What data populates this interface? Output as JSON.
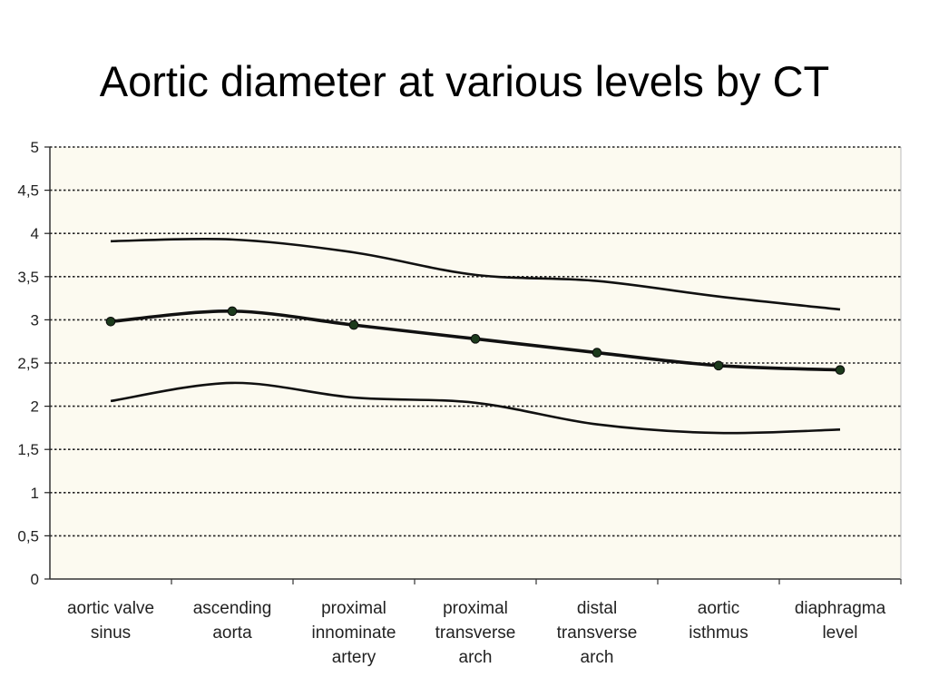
{
  "title": "Aortic diameter at various levels by CT",
  "colors": {
    "plot_background": "#fcfaf0",
    "grid": "#222222",
    "line": "#111111",
    "marker": "#1c3a1c"
  },
  "chart_data": {
    "type": "line",
    "title": "",
    "xlabel": "",
    "ylabel": "",
    "ylim": [
      0,
      5
    ],
    "yticks": [
      0,
      0.5,
      1,
      1.5,
      2,
      2.5,
      3,
      3.5,
      4,
      4.5,
      5
    ],
    "ytick_labels": [
      "0",
      "0,5",
      "1",
      "1,5",
      "2",
      "2,5",
      "3",
      "3,5",
      "4",
      "4,5",
      "5"
    ],
    "grid": "horizontal dotted",
    "legend": "none",
    "categories": [
      [
        "aortic valve",
        "sinus"
      ],
      [
        "ascending",
        "aorta"
      ],
      [
        "proximal",
        "innominate",
        "artery"
      ],
      [
        "proximal",
        "transverse",
        "arch"
      ],
      [
        "distal",
        "transverse",
        "arch"
      ],
      [
        "aortic",
        "isthmus"
      ],
      [
        "diaphragma",
        "level"
      ]
    ],
    "series": [
      {
        "values": [
          3.91,
          3.93,
          3.78,
          3.52,
          3.45,
          3.27,
          3.12
        ],
        "markers": false
      },
      {
        "values": [
          2.98,
          3.1,
          2.94,
          2.78,
          2.62,
          2.47,
          2.42
        ],
        "markers": true
      },
      {
        "values": [
          2.06,
          2.27,
          2.1,
          2.04,
          1.79,
          1.69,
          1.73
        ],
        "markers": false
      }
    ]
  }
}
